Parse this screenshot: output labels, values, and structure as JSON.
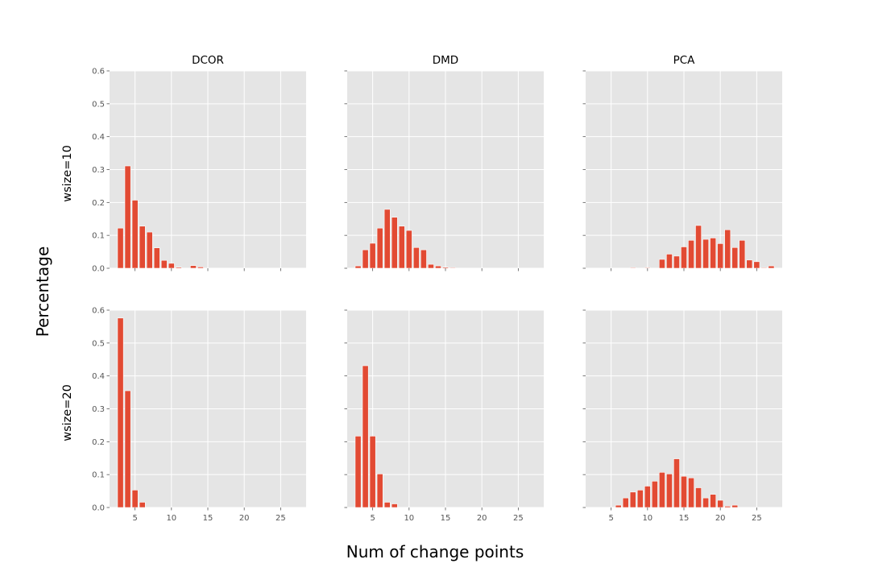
{
  "figure": {
    "xlabel": "Num of change points",
    "ylabel": "Percentage"
  },
  "colors": {
    "bar": "#e24a33",
    "panel_background": "#e5e5e5",
    "grid": "#ffffff",
    "tick_text": "#555555"
  },
  "chart_data": [
    {
      "type": "bar",
      "title": "DCOR",
      "row_label": "wsize=10",
      "x": [
        3,
        4,
        5,
        6,
        7,
        8,
        9,
        10,
        11,
        12,
        13,
        14,
        15,
        16
      ],
      "values": [
        0.122,
        0.311,
        0.207,
        0.128,
        0.11,
        0.062,
        0.024,
        0.015,
        0.003,
        0.0,
        0.008,
        0.004,
        0.0,
        0.0
      ],
      "ylim": [
        0,
        0.6
      ],
      "xlim": [
        1.5,
        28.5
      ],
      "xticks": [
        5,
        10,
        15,
        20,
        25
      ],
      "yticks": [
        0.0,
        0.1,
        0.2,
        0.3,
        0.4,
        0.5,
        0.6
      ],
      "show_xticklabels": false,
      "show_yticklabels": true,
      "grid": true
    },
    {
      "type": "bar",
      "title": "DMD",
      "row_label": "wsize=10",
      "x": [
        3,
        4,
        5,
        6,
        7,
        8,
        9,
        10,
        11,
        12,
        13,
        14,
        15,
        16
      ],
      "values": [
        0.007,
        0.056,
        0.076,
        0.122,
        0.179,
        0.155,
        0.128,
        0.115,
        0.063,
        0.056,
        0.012,
        0.007,
        0.003,
        0.002
      ],
      "ylim": [
        0,
        0.6
      ],
      "xlim": [
        1.5,
        28.5
      ],
      "xticks": [
        5,
        10,
        15,
        20,
        25
      ],
      "yticks": [
        0.0,
        0.1,
        0.2,
        0.3,
        0.4,
        0.5,
        0.6
      ],
      "show_xticklabels": false,
      "show_yticklabels": false,
      "grid": true
    },
    {
      "type": "bar",
      "title": "PCA",
      "row_label": "wsize=10",
      "x": [
        6,
        7,
        8,
        9,
        10,
        11,
        12,
        13,
        14,
        15,
        16,
        17,
        18,
        19,
        20,
        21,
        22,
        23,
        24,
        25,
        26,
        27
      ],
      "values": [
        0.0,
        0.0,
        0.002,
        0.0,
        0.002,
        0.0,
        0.027,
        0.043,
        0.037,
        0.065,
        0.085,
        0.13,
        0.088,
        0.092,
        0.075,
        0.117,
        0.063,
        0.085,
        0.025,
        0.02,
        0.002,
        0.007
      ],
      "ylim": [
        0,
        0.6
      ],
      "xlim": [
        1.5,
        28.5
      ],
      "xticks": [
        5,
        10,
        15,
        20,
        25
      ],
      "yticks": [
        0.0,
        0.1,
        0.2,
        0.3,
        0.4,
        0.5,
        0.6
      ],
      "show_xticklabels": false,
      "show_yticklabels": false,
      "grid": true
    },
    {
      "type": "bar",
      "title": "",
      "row_label": "wsize=20",
      "x": [
        3,
        4,
        5,
        6
      ],
      "values": [
        0.576,
        0.355,
        0.053,
        0.016
      ],
      "ylim": [
        0,
        0.6
      ],
      "xlim": [
        1.5,
        28.5
      ],
      "xticks": [
        5,
        10,
        15,
        20,
        25
      ],
      "yticks": [
        0.0,
        0.1,
        0.2,
        0.3,
        0.4,
        0.5,
        0.6
      ],
      "show_xticklabels": true,
      "show_yticklabels": true,
      "grid": true
    },
    {
      "type": "bar",
      "title": "",
      "row_label": "wsize=20",
      "x": [
        3,
        4,
        5,
        6,
        7,
        8
      ],
      "values": [
        0.217,
        0.431,
        0.217,
        0.102,
        0.016,
        0.011
      ],
      "ylim": [
        0,
        0.6
      ],
      "xlim": [
        1.5,
        28.5
      ],
      "xticks": [
        5,
        10,
        15,
        20,
        25
      ],
      "yticks": [
        0.0,
        0.1,
        0.2,
        0.3,
        0.4,
        0.5,
        0.6
      ],
      "show_xticklabels": true,
      "show_yticklabels": false,
      "grid": true
    },
    {
      "type": "bar",
      "title": "",
      "row_label": "wsize=20",
      "x": [
        6,
        7,
        8,
        9,
        10,
        11,
        12,
        13,
        14,
        15,
        16,
        17,
        18,
        19,
        20,
        21,
        22
      ],
      "values": [
        0.007,
        0.029,
        0.047,
        0.053,
        0.065,
        0.08,
        0.107,
        0.102,
        0.148,
        0.095,
        0.09,
        0.06,
        0.029,
        0.04,
        0.022,
        0.004,
        0.007
      ],
      "ylim": [
        0,
        0.6
      ],
      "xlim": [
        1.5,
        28.5
      ],
      "xticks": [
        5,
        10,
        15,
        20,
        25
      ],
      "yticks": [
        0.0,
        0.1,
        0.2,
        0.3,
        0.4,
        0.5,
        0.6
      ],
      "show_xticklabels": true,
      "show_yticklabels": false,
      "grid": true
    }
  ]
}
